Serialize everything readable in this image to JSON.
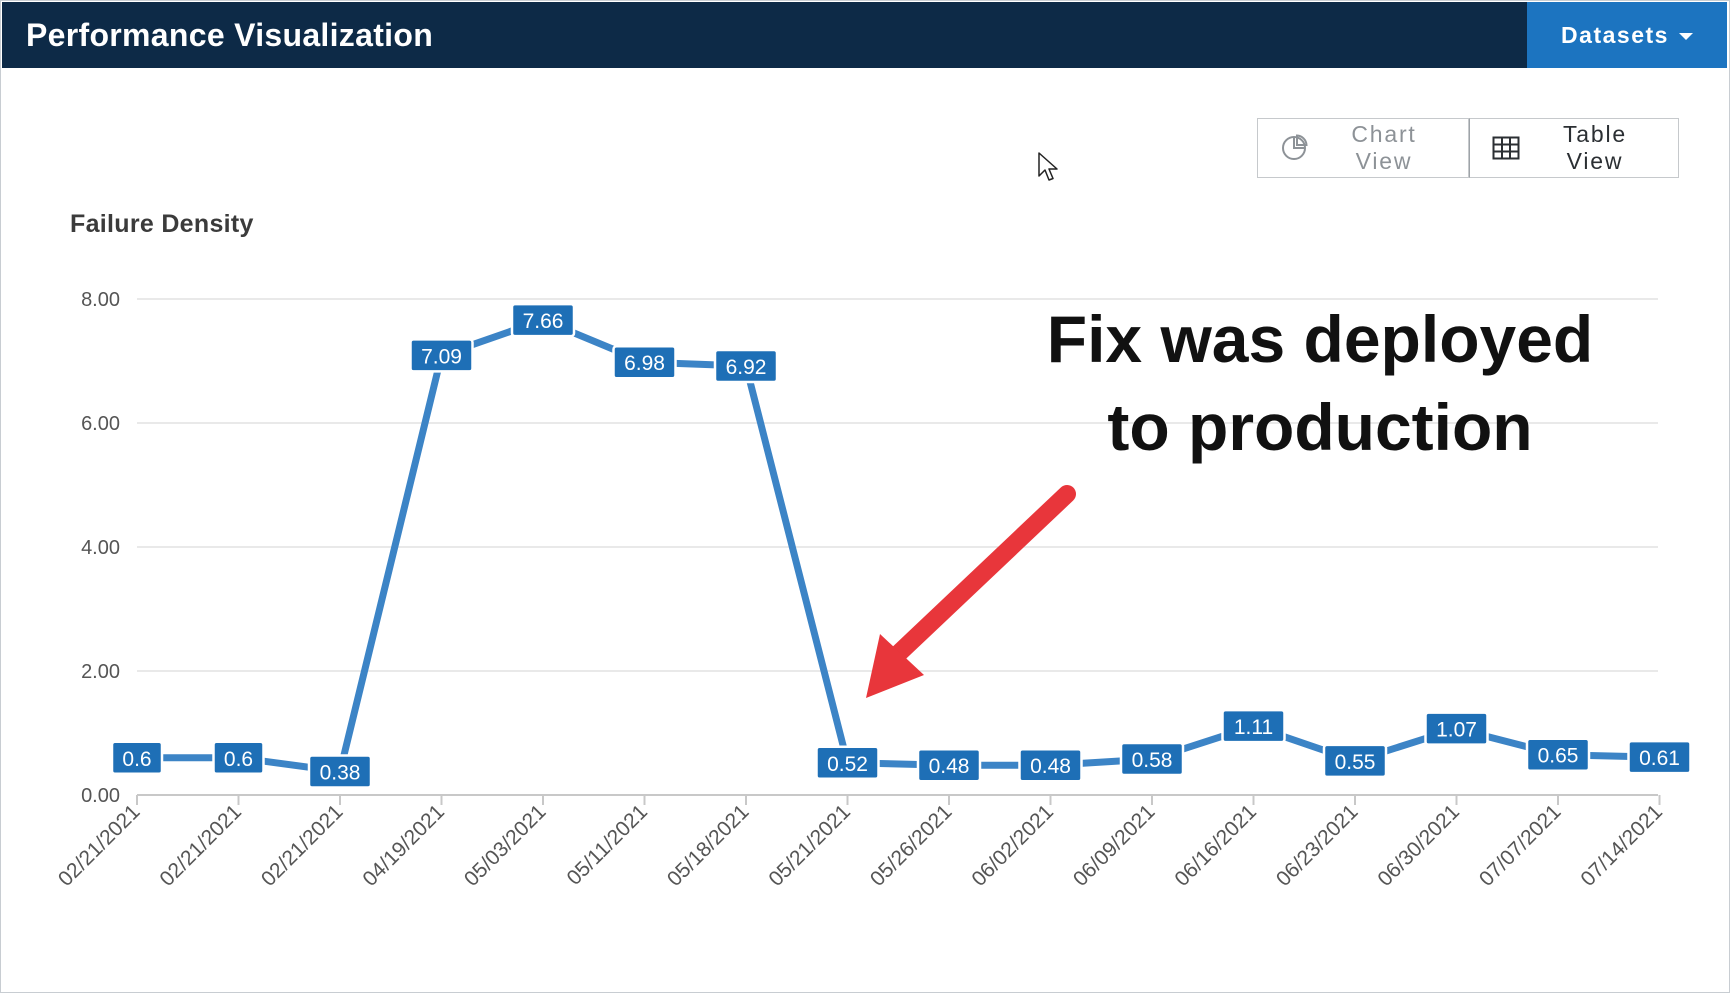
{
  "header": {
    "app_title": "Performance Visualization",
    "datasets_label": "Datasets"
  },
  "view_toggle": {
    "chart_view_label": "Chart View",
    "table_view_label": "Table View"
  },
  "annotation": {
    "line1": "Fix was deployed",
    "line2": "to production"
  },
  "colors": {
    "header_bg": "#0d2a47",
    "accent": "#1c74c0",
    "series": "#3c84c6",
    "arrow": "#e8363b"
  },
  "chart_data": {
    "type": "line",
    "title": "Failure Density",
    "xlabel": "",
    "ylabel": "",
    "ylim": [
      0,
      8
    ],
    "y_ticks": [
      "0.00",
      "2.00",
      "4.00",
      "6.00",
      "8.00"
    ],
    "grid": true,
    "categories": [
      "02/21/2021",
      "02/21/2021",
      "02/21/2021",
      "04/19/2021",
      "05/03/2021",
      "05/11/2021",
      "05/18/2021",
      "05/21/2021",
      "05/26/2021",
      "06/02/2021",
      "06/09/2021",
      "06/16/2021",
      "06/23/2021",
      "06/30/2021",
      "07/07/2021",
      "07/14/2021"
    ],
    "series": [
      {
        "values": [
          0.6,
          0.6,
          0.38,
          7.09,
          7.66,
          6.98,
          6.92,
          0.52,
          0.48,
          0.48,
          0.58,
          1.11,
          0.55,
          1.07,
          0.65,
          0.61
        ],
        "labels": [
          "0.6",
          "0.6",
          "0.38",
          "7.09",
          "7.66",
          "6.98",
          "6.92",
          "0.52",
          "0.48",
          "0.48",
          "0.58",
          "1.11",
          "0.55",
          "1.07",
          "0.65",
          "0.61"
        ]
      }
    ]
  }
}
